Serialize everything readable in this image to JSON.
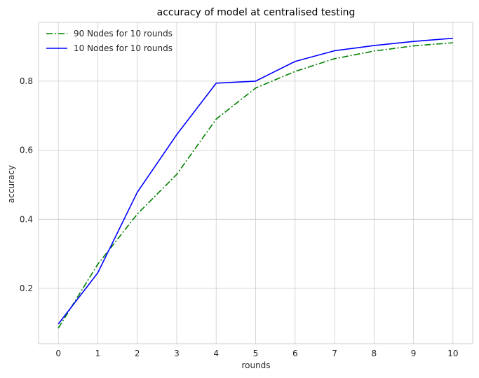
{
  "chart_data": {
    "type": "line",
    "title": "accuracy of model at centralised testing",
    "xlabel": "rounds",
    "ylabel": "accuracy",
    "x": [
      0,
      1,
      2,
      3,
      4,
      5,
      6,
      7,
      8,
      9,
      10
    ],
    "xlim": [
      -0.5,
      10.5
    ],
    "ylim": [
      0.04,
      0.97
    ],
    "xticks": [
      "0",
      "1",
      "2",
      "3",
      "4",
      "5",
      "6",
      "7",
      "8",
      "9",
      "10"
    ],
    "yticks": [
      0.2,
      0.4,
      0.6,
      0.8
    ],
    "ytick_labels": [
      "0.2",
      "0.4",
      "0.6",
      "0.8"
    ],
    "grid": true,
    "legend_position": "top-left",
    "series": [
      {
        "name": "90 Nodes for 10 rounds",
        "color": "#008000",
        "style": "dashdot",
        "values": [
          0.085,
          0.27,
          0.415,
          0.53,
          0.69,
          0.78,
          0.828,
          0.865,
          0.887,
          0.902,
          0.911
        ]
      },
      {
        "name": "10 Nodes for 10 rounds",
        "color": "#0000ff",
        "style": "solid",
        "values": [
          0.097,
          0.245,
          0.478,
          0.645,
          0.794,
          0.8,
          0.857,
          0.888,
          0.903,
          0.915,
          0.924
        ]
      }
    ]
  }
}
